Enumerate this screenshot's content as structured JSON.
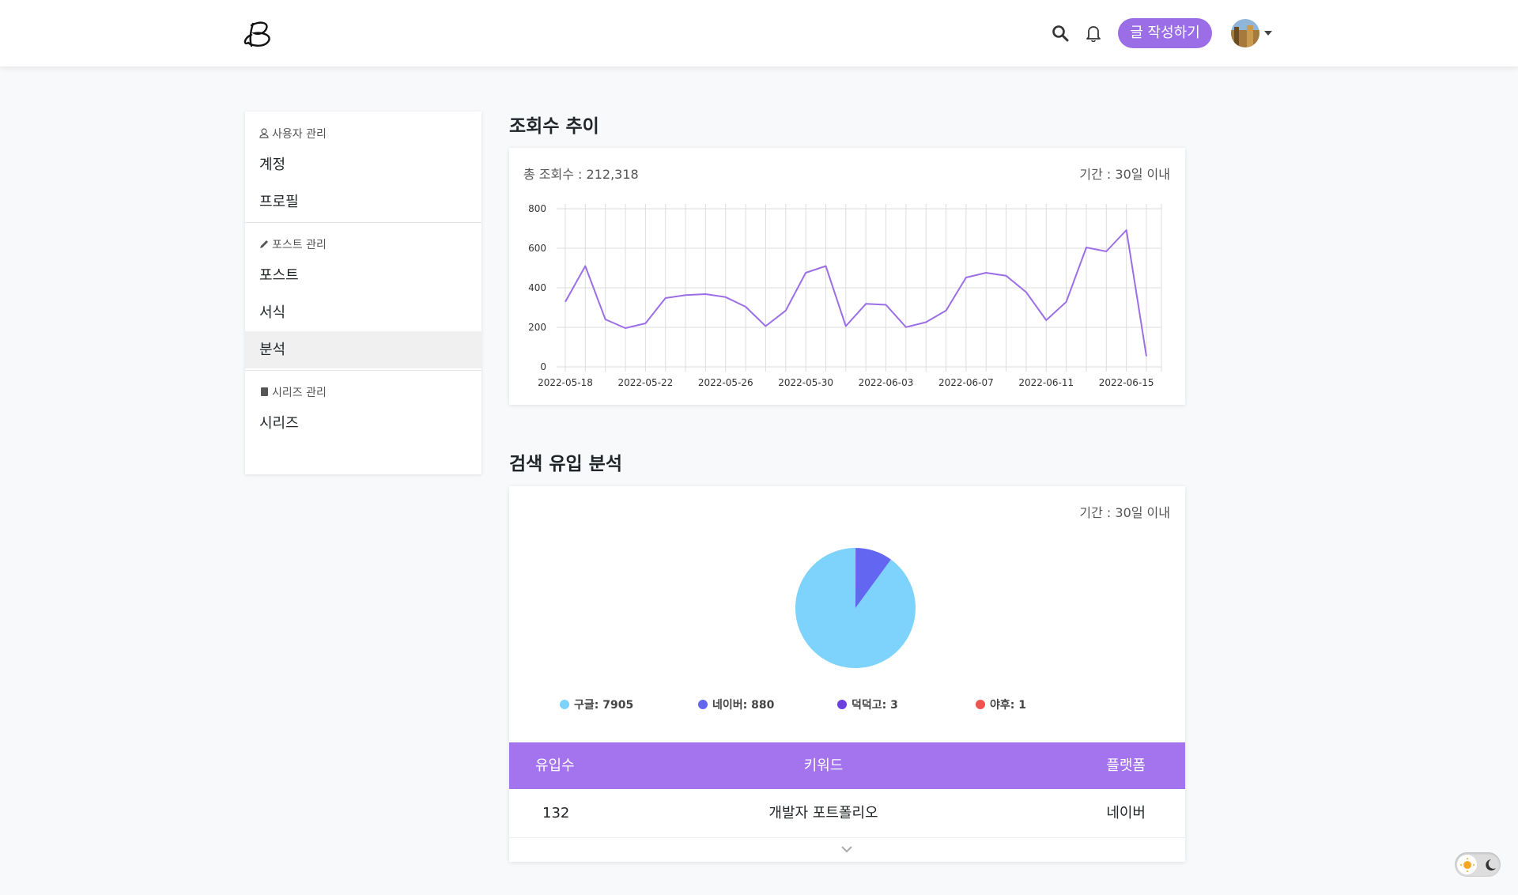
{
  "header": {
    "write_button": "글 작성하기"
  },
  "sidebar": [
    {
      "title": "사용자 관리",
      "items": [
        "계정",
        "프로필"
      ]
    },
    {
      "title": "포스트 관리",
      "items": [
        "포스트",
        "서식",
        "분석"
      ]
    },
    {
      "title": "시리즈 관리",
      "items": [
        "시리즈"
      ]
    }
  ],
  "chart_data": [
    {
      "type": "line",
      "title": "조회수 추이",
      "subtitle": "총 조회수 : 212,318",
      "annotation": "기간 : 30일 이내",
      "categories": [
        "2022-05-18",
        null,
        null,
        null,
        "2022-05-22",
        null,
        null,
        null,
        "2022-05-26",
        null,
        null,
        null,
        "2022-05-30",
        null,
        null,
        null,
        "2022-06-03",
        null,
        null,
        null,
        "2022-06-07",
        null,
        null,
        null,
        "2022-06-11",
        null,
        null,
        null,
        "2022-06-15",
        null
      ],
      "values": [
        329,
        510,
        240,
        196,
        220,
        348,
        363,
        368,
        353,
        304,
        206,
        285,
        476,
        510,
        206,
        319,
        314,
        201,
        226,
        285,
        452,
        476,
        461,
        378,
        236,
        329,
        604,
        584,
        692,
        54
      ],
      "color": "#9b6ee8",
      "ylim": [
        0,
        800
      ],
      "yticks": [
        0,
        200,
        400,
        600,
        800
      ],
      "grid": true
    },
    {
      "type": "pie",
      "title": "검색 유입 분석",
      "annotation": "기간 : 30일 이내",
      "categories": [
        "구글",
        "네이버",
        "덕덕고",
        "야후"
      ],
      "values": [
        7905,
        880,
        3,
        1
      ],
      "colors": [
        "#7dd3fc",
        "#6366f1",
        "#6d3ee0",
        "#ef5350"
      ]
    }
  ],
  "table": {
    "columns": [
      "유입수",
      "키워드",
      "플랫폼"
    ],
    "rows": [
      [
        132,
        "개발자 포트폴리오",
        "네이버"
      ]
    ]
  }
}
